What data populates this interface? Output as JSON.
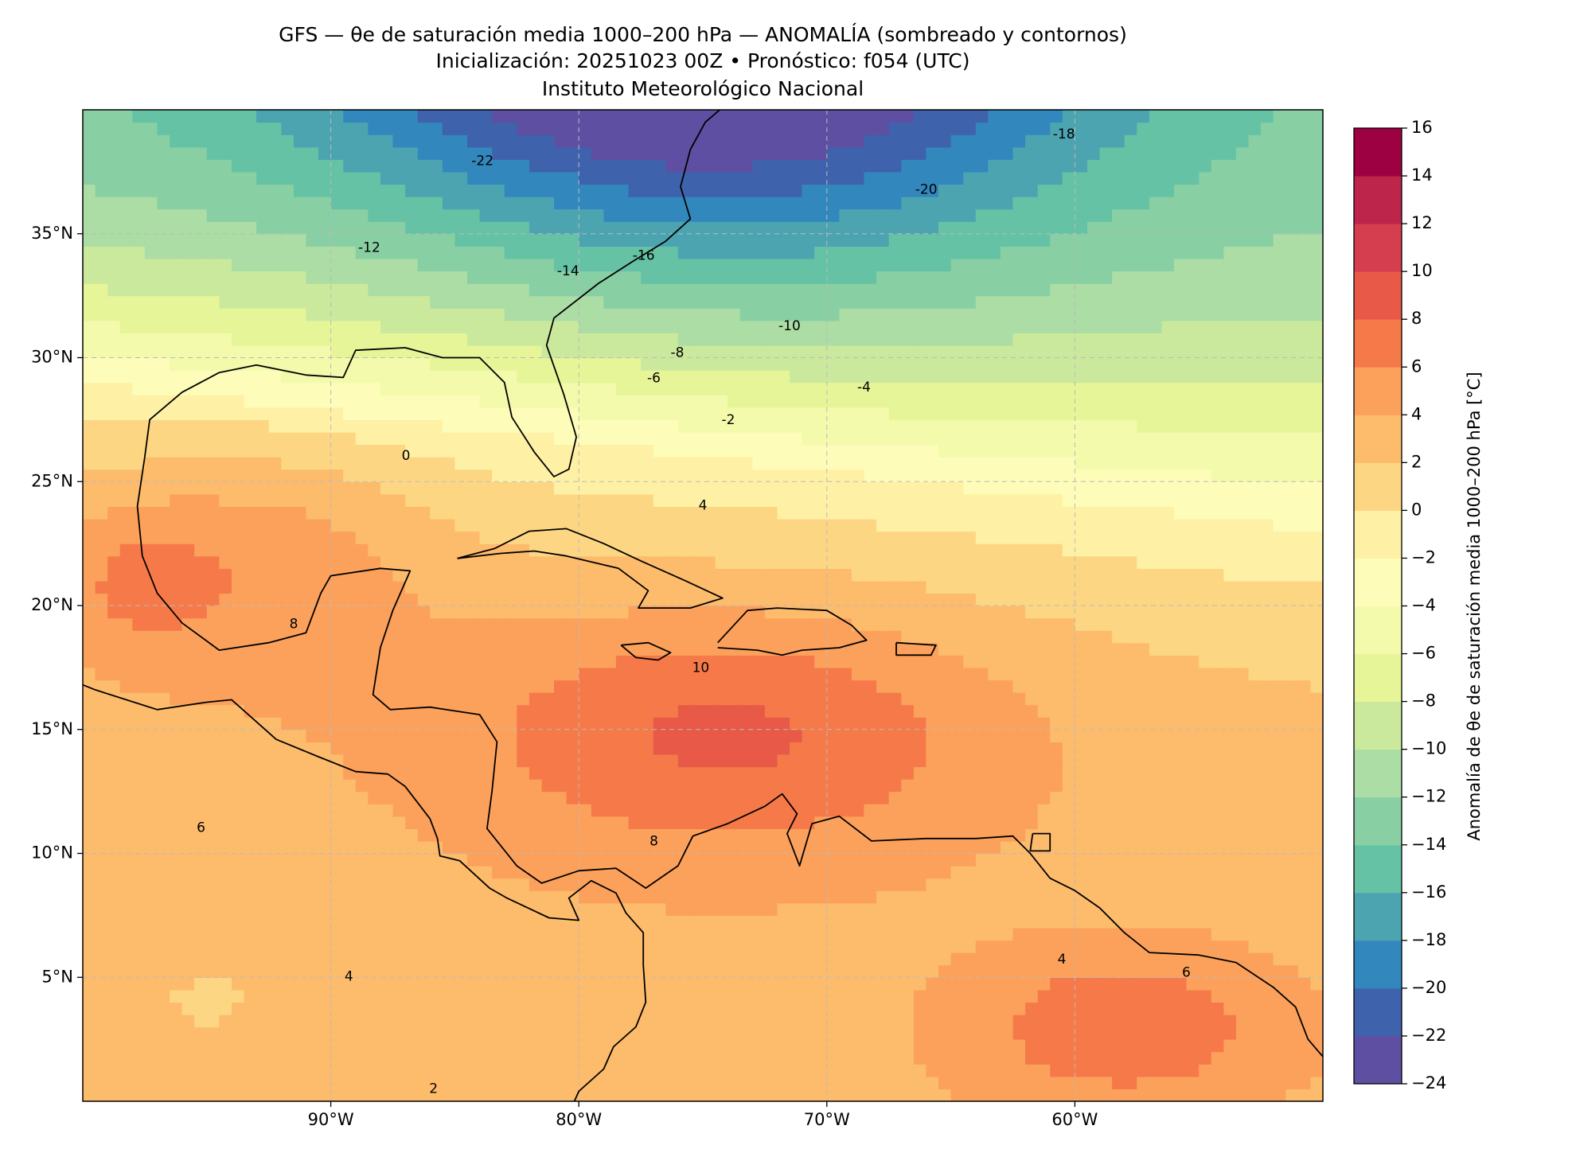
{
  "map": {
    "title": "GFS — θe de saturación media 1000–200 hPa — ANOMALÍA (sombreado y contornos)",
    "subtitle": "Inicialización: 20251023 00Z   •   Pronóstico: f054 (UTC)",
    "institution": "Instituto Meteorológico Nacional",
    "xlim": [
      -100,
      -50
    ],
    "ylim": [
      0,
      40
    ],
    "xticks": [
      {
        "value": -90,
        "label": "90°W"
      },
      {
        "value": -80,
        "label": "80°W"
      },
      {
        "value": -70,
        "label": "70°W"
      },
      {
        "value": -60,
        "label": "60°W"
      }
    ],
    "yticks": [
      {
        "value": 5,
        "label": "5°N"
      },
      {
        "value": 10,
        "label": "10°N"
      },
      {
        "value": 15,
        "label": "15°N"
      },
      {
        "value": 20,
        "label": "20°N"
      },
      {
        "value": 25,
        "label": "25°N"
      },
      {
        "value": 30,
        "label": "30°N"
      },
      {
        "value": 35,
        "label": "35°N"
      }
    ],
    "grid": true,
    "contour_labels": [
      -22,
      -12,
      -14,
      -16,
      -18,
      -20,
      -10,
      -8,
      -6,
      -4,
      -2,
      0,
      4,
      8,
      10,
      6,
      8,
      4,
      2,
      6,
      4
    ],
    "colorbar": {
      "label": "Anomalía de θe de saturación media 1000–200 hPa [°C]",
      "ticks": [
        {
          "value": -24,
          "label": "−24"
        },
        {
          "value": -22,
          "label": "−22"
        },
        {
          "value": -20,
          "label": "−20"
        },
        {
          "value": -18,
          "label": "−18"
        },
        {
          "value": -16,
          "label": "−16"
        },
        {
          "value": -14,
          "label": "−14"
        },
        {
          "value": -12,
          "label": "−12"
        },
        {
          "value": -10,
          "label": "−10"
        },
        {
          "value": -8,
          "label": "−8"
        },
        {
          "value": -6,
          "label": "−6"
        },
        {
          "value": -4,
          "label": "−4"
        },
        {
          "value": -2,
          "label": "−2"
        },
        0,
        2,
        4,
        6,
        8,
        10,
        12,
        14,
        16
      ],
      "colors": [
        "#5e4fa2",
        "#3f62ad",
        "#3288bd",
        "#4da4b1",
        "#66c2a5",
        "#88cfa4",
        "#abdda4",
        "#cbe99d",
        "#e6f598",
        "#f3faac",
        "#fdfcb8",
        "#fef0a5",
        "#fdd683",
        "#fdbb6c",
        "#fca15b",
        "#f67a49",
        "#e85a47",
        "#d53e4f",
        "#be254a",
        "#9e0142"
      ]
    }
  }
}
